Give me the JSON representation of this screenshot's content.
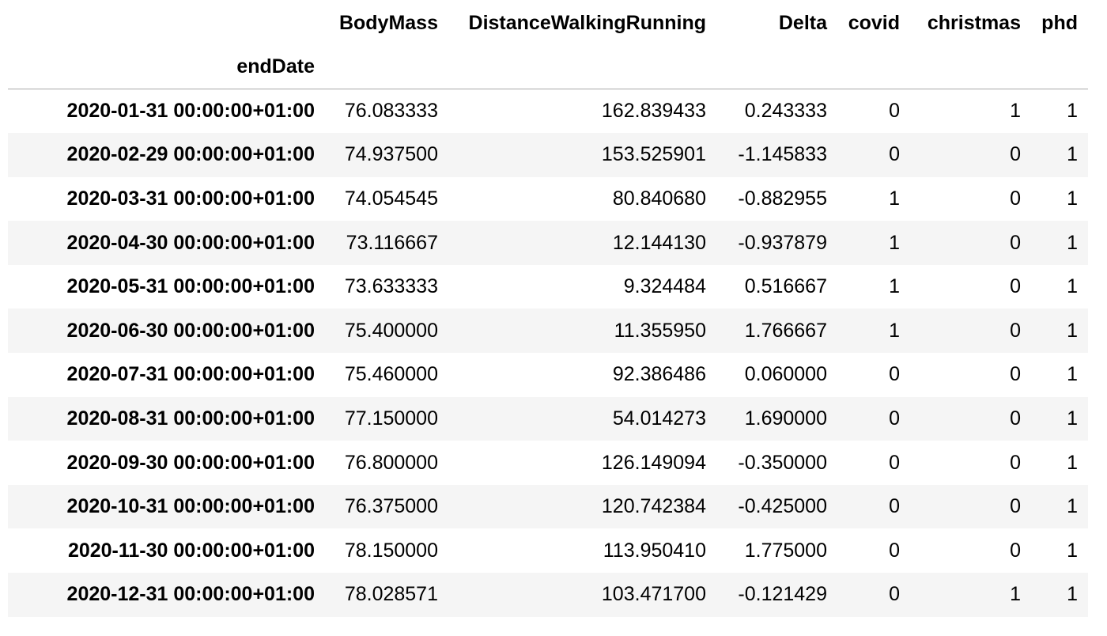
{
  "table": {
    "columns": [
      "BodyMass",
      "DistanceWalkingRunning",
      "Delta",
      "covid",
      "christmas",
      "phd"
    ],
    "index_name": "endDate",
    "rows": [
      {
        "index": "2020-01-31 00:00:00+01:00",
        "values": [
          "76.083333",
          "162.839433",
          "0.243333",
          "0",
          "1",
          "1"
        ]
      },
      {
        "index": "2020-02-29 00:00:00+01:00",
        "values": [
          "74.937500",
          "153.525901",
          "-1.145833",
          "0",
          "0",
          "1"
        ]
      },
      {
        "index": "2020-03-31 00:00:00+01:00",
        "values": [
          "74.054545",
          "80.840680",
          "-0.882955",
          "1",
          "0",
          "1"
        ]
      },
      {
        "index": "2020-04-30 00:00:00+01:00",
        "values": [
          "73.116667",
          "12.144130",
          "-0.937879",
          "1",
          "0",
          "1"
        ]
      },
      {
        "index": "2020-05-31 00:00:00+01:00",
        "values": [
          "73.633333",
          "9.324484",
          "0.516667",
          "1",
          "0",
          "1"
        ]
      },
      {
        "index": "2020-06-30 00:00:00+01:00",
        "values": [
          "75.400000",
          "11.355950",
          "1.766667",
          "1",
          "0",
          "1"
        ]
      },
      {
        "index": "2020-07-31 00:00:00+01:00",
        "values": [
          "75.460000",
          "92.386486",
          "0.060000",
          "0",
          "0",
          "1"
        ]
      },
      {
        "index": "2020-08-31 00:00:00+01:00",
        "values": [
          "77.150000",
          "54.014273",
          "1.690000",
          "0",
          "0",
          "1"
        ]
      },
      {
        "index": "2020-09-30 00:00:00+01:00",
        "values": [
          "76.800000",
          "126.149094",
          "-0.350000",
          "0",
          "0",
          "1"
        ]
      },
      {
        "index": "2020-10-31 00:00:00+01:00",
        "values": [
          "76.375000",
          "120.742384",
          "-0.425000",
          "0",
          "0",
          "1"
        ]
      },
      {
        "index": "2020-11-30 00:00:00+01:00",
        "values": [
          "78.150000",
          "113.950410",
          "1.775000",
          "0",
          "0",
          "1"
        ]
      },
      {
        "index": "2020-12-31 00:00:00+01:00",
        "values": [
          "78.028571",
          "103.471700",
          "-0.121429",
          "0",
          "1",
          "1"
        ]
      }
    ]
  }
}
